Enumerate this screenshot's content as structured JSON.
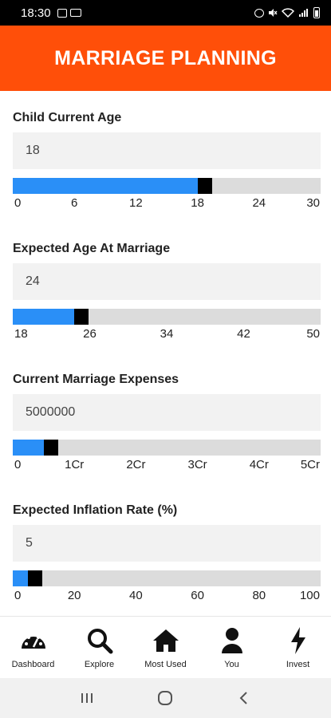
{
  "status_bar": {
    "time": "18:30",
    "left_icons": [
      "gallery-icon",
      "laptop-icon"
    ],
    "right_icons": [
      "alarm-icon",
      "mute-icon",
      "wifi-icon",
      "signal-icon",
      "battery-icon"
    ]
  },
  "header": {
    "title": "MARRIAGE PLANNING",
    "background_color": "#ff4f09"
  },
  "colors": {
    "slider_fill": "#2a8ff7",
    "slider_track": "#dcdcdc",
    "slider_thumb": "#000000"
  },
  "sections": [
    {
      "label": "Child Current Age",
      "value": "18",
      "slider_fraction": 0.6,
      "ticks": [
        "0",
        "6",
        "12",
        "18",
        "24",
        "30"
      ]
    },
    {
      "label": "Expected Age At Marriage",
      "value": "24",
      "slider_fraction": 0.2,
      "ticks": [
        "18",
        "26",
        "34",
        "42",
        "50"
      ]
    },
    {
      "label": "Current Marriage Expenses",
      "value": "5000000",
      "slider_fraction": 0.1,
      "ticks": [
        "0",
        "1Cr",
        "2Cr",
        "3Cr",
        "4Cr",
        "5Cr"
      ]
    },
    {
      "label": "Expected Inflation Rate (%)",
      "value": "5",
      "slider_fraction": 0.05,
      "ticks": [
        "0",
        "20",
        "40",
        "60",
        "80",
        "100"
      ]
    }
  ],
  "bottom_nav": [
    {
      "label": "Dashboard",
      "icon": "dashboard-gauge-icon"
    },
    {
      "label": "Explore",
      "icon": "search-icon"
    },
    {
      "label": "Most Used",
      "icon": "home-icon"
    },
    {
      "label": "You",
      "icon": "user-icon"
    },
    {
      "label": "Invest",
      "icon": "lightning-icon"
    }
  ],
  "system_nav": [
    "recents-icon",
    "home-circle-icon",
    "back-icon"
  ]
}
